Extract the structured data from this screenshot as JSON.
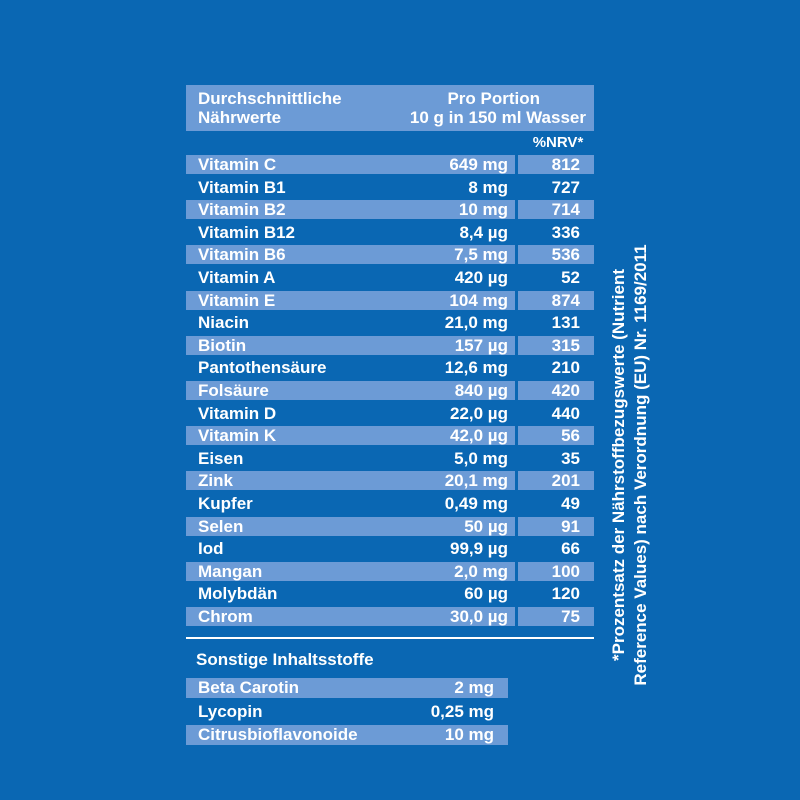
{
  "header": {
    "col_label_line1": "Durchschnittliche",
    "col_label_line2": "Nährwerte",
    "portion_line1": "Pro Portion",
    "portion_line2": "10 g in 150 ml Wasser",
    "nrv_label": "%NRV*"
  },
  "nutrients": [
    {
      "name": "Vitamin C",
      "amount": "649 mg",
      "nrv": "812"
    },
    {
      "name": "Vitamin B1",
      "amount": "8 mg",
      "nrv": "727"
    },
    {
      "name": "Vitamin B2",
      "amount": "10 mg",
      "nrv": "714"
    },
    {
      "name": "Vitamin B12",
      "amount": "8,4 µg",
      "nrv": "336"
    },
    {
      "name": "Vitamin B6",
      "amount": "7,5 mg",
      "nrv": "536"
    },
    {
      "name": "Vitamin A",
      "amount": "420 µg",
      "nrv": "52"
    },
    {
      "name": "Vitamin E",
      "amount": "104 mg",
      "nrv": "874"
    },
    {
      "name": "Niacin",
      "amount": "21,0 mg",
      "nrv": "131"
    },
    {
      "name": "Biotin",
      "amount": "157 µg",
      "nrv": "315"
    },
    {
      "name": "Pantothensäure",
      "amount": "12,6 mg",
      "nrv": "210"
    },
    {
      "name": "Folsäure",
      "amount": "840 µg",
      "nrv": "420"
    },
    {
      "name": "Vitamin D",
      "amount": "22,0 µg",
      "nrv": "440"
    },
    {
      "name": "Vitamin K",
      "amount": "42,0 µg",
      "nrv": "56"
    },
    {
      "name": "Eisen",
      "amount": "5,0 mg",
      "nrv": "35"
    },
    {
      "name": "Zink",
      "amount": "20,1 mg",
      "nrv": "201"
    },
    {
      "name": "Kupfer",
      "amount": "0,49 mg",
      "nrv": "49"
    },
    {
      "name": "Selen",
      "amount": "50 µg",
      "nrv": "91"
    },
    {
      "name": "Iod",
      "amount": "99,9 µg",
      "nrv": "66"
    },
    {
      "name": "Mangan",
      "amount": "2,0 mg",
      "nrv": "100"
    },
    {
      "name": "Molybdän",
      "amount": "60 µg",
      "nrv": "120"
    },
    {
      "name": "Chrom",
      "amount": "30,0 µg",
      "nrv": "75"
    }
  ],
  "other": {
    "title": "Sonstige Inhaltsstoffe",
    "items": [
      {
        "name": "Beta Carotin",
        "amount": "2 mg"
      },
      {
        "name": "Lycopin",
        "amount": "0,25 mg"
      },
      {
        "name": "Citrusbioflavonoide",
        "amount": "10 mg"
      }
    ]
  },
  "footnote": {
    "line1": "*Prozentsatz der Nährstoffbezugswerte (Nutrient",
    "line2": "Reference Values) nach Verordnung (EU) Nr. 1169/2011"
  },
  "colors": {
    "background": "#0a67b3",
    "stripe": "#6c9bd6",
    "text": "#ffffff"
  }
}
